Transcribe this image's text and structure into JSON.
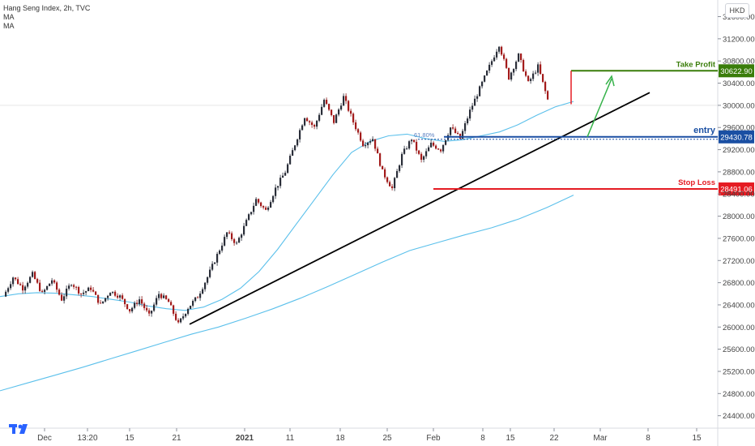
{
  "legend": {
    "title": "Hang Seng Index, 2h, TVC",
    "ma1": "MA",
    "ma2": "MA"
  },
  "currency": "HKD",
  "colors": {
    "up": "#26a69a",
    "down": "#ef5350",
    "candle": "#2a2e39",
    "ma": "#5bc0eb",
    "trendline": "#000000",
    "take_profit": "#3a7d0a",
    "entry": "#1a4fa3",
    "stop_loss": "#e51c23",
    "arrow": "#36b24a"
  },
  "chart_data": {
    "type": "candlestick",
    "ylim": [
      24000,
      31900
    ],
    "y_ticks": [
      24400,
      24800,
      25200,
      25600,
      26000,
      26400,
      26800,
      27200,
      27600,
      28000,
      28400,
      28800,
      29200,
      29600,
      30000,
      30400,
      30800,
      31200,
      31600
    ],
    "y_tick_labels": [
      "24400.00",
      "24800.00",
      "25200.00",
      "25600.00",
      "26000.00",
      "26400.00",
      "26800.00",
      "27200.00",
      "27600.00",
      "28000.00",
      "28400.00",
      "28800.00",
      "29200.00",
      "29600.00",
      "30000.00",
      "30400.00",
      "30800.00",
      "31200.00",
      "31600.00"
    ],
    "x_tick_labels": [
      "Dec",
      "13:20",
      "15",
      "21",
      "2021",
      "11",
      "18",
      "25",
      "Feb",
      "8",
      "15",
      "22",
      "Mar",
      "8",
      "15"
    ],
    "levels": [
      {
        "name": "Take Profit",
        "value": 30622.9,
        "label": "30622.90"
      },
      {
        "name": "entry",
        "value": 29430.78,
        "label": "29430.78"
      },
      {
        "name": "Stop Loss",
        "value": 28491.06,
        "label": "28491.06"
      }
    ],
    "fib_label": "61.80%",
    "price_path": [
      [
        26550,
        26900
      ],
      [
        26900,
        26700
      ],
      [
        26700,
        26950
      ],
      [
        26950,
        26600
      ],
      [
        26600,
        26850
      ],
      [
        26850,
        26500
      ],
      [
        26500,
        26800
      ],
      [
        26800,
        26600
      ],
      [
        26600,
        26700
      ],
      [
        26700,
        26400
      ],
      [
        26400,
        26650
      ],
      [
        26650,
        26550
      ],
      [
        26550,
        26300
      ],
      [
        26300,
        26500
      ],
      [
        26500,
        26200
      ],
      [
        26200,
        26600
      ],
      [
        26600,
        26450
      ],
      [
        26450,
        26050
      ],
      [
        26050,
        26350
      ],
      [
        26350,
        26550
      ],
      [
        26550,
        26900
      ],
      [
        26900,
        27300
      ],
      [
        27300,
        27700
      ],
      [
        27700,
        27500
      ],
      [
        27500,
        27900
      ],
      [
        27900,
        28300
      ],
      [
        28300,
        28100
      ],
      [
        28100,
        28500
      ],
      [
        28500,
        28800
      ],
      [
        28800,
        29300
      ],
      [
        29300,
        29800
      ],
      [
        29800,
        29600
      ],
      [
        29600,
        30100
      ],
      [
        30100,
        29700
      ],
      [
        29700,
        30150
      ],
      [
        30150,
        29700
      ],
      [
        29700,
        29300
      ],
      [
        29300,
        29400
      ],
      [
        29400,
        28800
      ],
      [
        28800,
        28500
      ],
      [
        28500,
        29100
      ],
      [
        29100,
        29400
      ],
      [
        29400,
        29000
      ],
      [
        29000,
        29300
      ],
      [
        29300,
        29200
      ],
      [
        29200,
        29600
      ],
      [
        29600,
        29400
      ],
      [
        29400,
        29900
      ],
      [
        29900,
        30300
      ],
      [
        30300,
        30700
      ],
      [
        30700,
        31100
      ],
      [
        31100,
        30500
      ],
      [
        30500,
        30900
      ],
      [
        30900,
        30400
      ],
      [
        30400,
        30700
      ],
      [
        30700,
        30100
      ]
    ],
    "ma_short": [
      26550,
      26600,
      26620,
      26610,
      26580,
      26550,
      26500,
      26450,
      26380,
      26330,
      26300,
      26360,
      26500,
      26700,
      27000,
      27400,
      27850,
      28300,
      28750,
      29150,
      29350,
      29450,
      29480,
      29400,
      29350,
      29380,
      29450,
      29520,
      29650,
      29820,
      29970,
      30070
    ],
    "ma_long": [
      24850,
      24990,
      25130,
      25270,
      25420,
      25570,
      25720,
      25870,
      26000,
      26160,
      26330,
      26520,
      26730,
      26950,
      27170,
      27380,
      27520,
      27660,
      27790,
      27950,
      28150,
      28380
    ],
    "annotations": [
      "Take Profit",
      "entry",
      "Stop Loss"
    ]
  }
}
